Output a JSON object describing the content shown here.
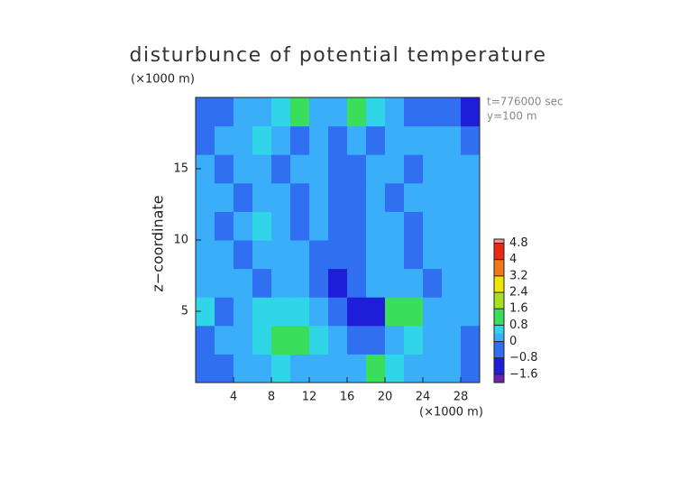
{
  "chart_data": {
    "type": "heatmap",
    "title": "disturbunce of potential temperature",
    "y_unit_label": "(×1000 m)",
    "x_unit_label": "(×1000 m)",
    "y_label": "z−coordinate",
    "annotations": [
      "t=776000 sec",
      "y=100 m"
    ],
    "xlim": [
      0,
      30
    ],
    "ylim": [
      0,
      20
    ],
    "xticks": [
      4,
      8,
      12,
      16,
      20,
      24,
      28
    ],
    "yticks": [
      5,
      10,
      15
    ],
    "x": [
      1,
      3,
      5,
      7,
      9,
      11,
      13,
      15,
      17,
      19,
      21,
      23,
      25,
      27,
      29
    ],
    "y": [
      1,
      3,
      5,
      7,
      9,
      11,
      13,
      15,
      17,
      19
    ],
    "z": [
      [
        -0.5,
        -0.3,
        0.2,
        0.3,
        0.4,
        0.3,
        0.2,
        0.1,
        0.3,
        0.8,
        0.6,
        0.3,
        0.2,
        0.1,
        -0.3
      ],
      [
        -0.2,
        0.2,
        0.3,
        0.6,
        1.0,
        1.0,
        0.6,
        0.2,
        -0.4,
        -0.2,
        0.3,
        0.4,
        0.3,
        0.2,
        -0.2
      ],
      [
        0.5,
        -0.4,
        0.3,
        0.6,
        0.5,
        0.4,
        0.2,
        -0.6,
        -0.9,
        -1.0,
        0.9,
        1.0,
        0.3,
        0.1,
        0.2
      ],
      [
        0.1,
        0.2,
        0.1,
        -0.3,
        0.2,
        0.3,
        -0.5,
        -1.4,
        -0.4,
        0.2,
        0.3,
        0.1,
        -0.3,
        0.2,
        0.3
      ],
      [
        0.2,
        0.3,
        -0.3,
        0.2,
        0.3,
        0.1,
        -0.2,
        -0.3,
        -0.5,
        0.2,
        0.1,
        -0.4,
        0.3,
        0.2,
        0.1
      ],
      [
        0.2,
        -0.4,
        0.2,
        0.4,
        0.1,
        -0.3,
        0.2,
        -0.3,
        -0.4,
        0.3,
        0.2,
        -0.4,
        0.3,
        0.2,
        0.2
      ],
      [
        0.3,
        0.2,
        -0.3,
        0.1,
        0.2,
        -0.2,
        0.3,
        -0.2,
        -0.3,
        0.2,
        -0.3,
        0.1,
        0.3,
        0.2,
        0.1
      ],
      [
        0.1,
        -0.3,
        0.2,
        0.3,
        -0.2,
        0.2,
        0.1,
        -0.4,
        -0.3,
        0.3,
        0.1,
        -0.2,
        0.2,
        0.1,
        0.2
      ],
      [
        -0.3,
        0.2,
        0.3,
        0.5,
        0.3,
        -0.2,
        0.2,
        -0.3,
        0.2,
        -0.3,
        0.3,
        0.2,
        0.3,
        0.2,
        -0.3
      ],
      [
        -0.6,
        -0.4,
        0.2,
        0.3,
        0.4,
        0.8,
        0.3,
        0.1,
        0.9,
        0.5,
        0.2,
        -0.3,
        -0.4,
        -0.6,
        -1.0
      ]
    ],
    "contour_levels": [
      -2,
      -1.6,
      -0.8,
      0,
      0.4,
      0.8,
      1.6,
      2.4,
      3.2,
      4,
      4.8,
      5
    ],
    "colors": [
      "#6a22b0",
      "#1e1ed8",
      "#2f6ff0",
      "#3aaef8",
      "#30d6e8",
      "#3ade5a",
      "#a6e020",
      "#f0e400",
      "#f07818",
      "#e82a10",
      "#f09090"
    ],
    "colorbar_lim": [
      -2,
      5
    ],
    "colorbar_ticks": [
      4.8,
      4,
      3.2,
      2.4,
      1.6,
      0.8,
      0,
      {
        "value": -0.8,
        "label": "−0.8"
      },
      {
        "value": -1.6,
        "label": "−1.6"
      }
    ]
  }
}
